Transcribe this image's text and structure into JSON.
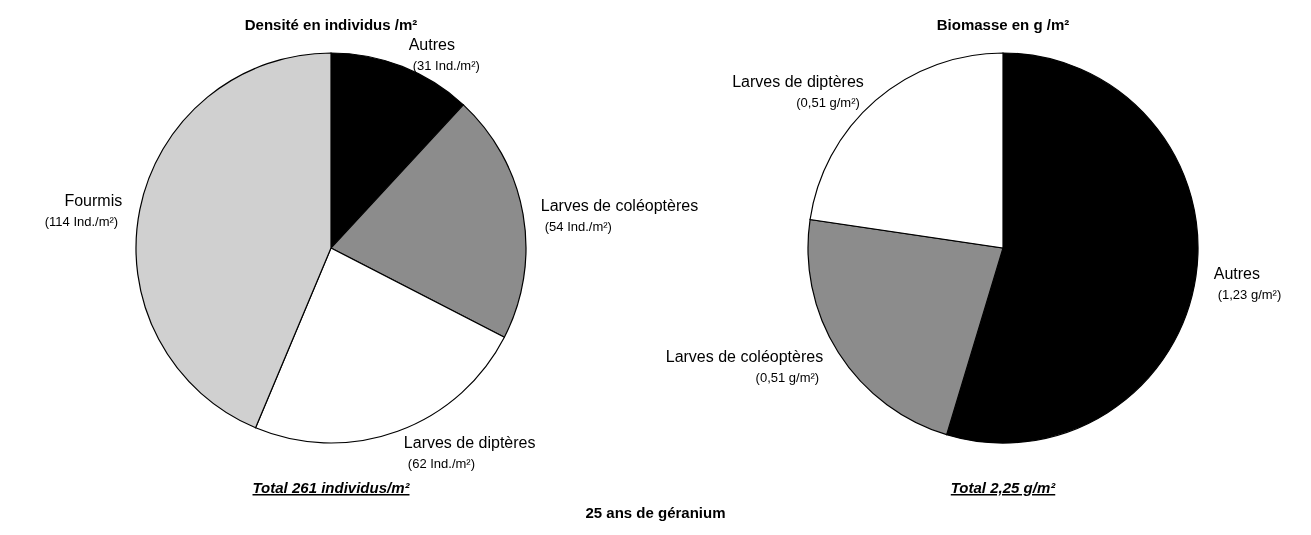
{
  "chart_data": [
    {
      "type": "pie",
      "title": "Densité en individus /m²",
      "categories": [
        "Autres",
        "Larves de coléoptères",
        "Larves de diptères",
        "Fourmis"
      ],
      "values": [
        31,
        54,
        62,
        114
      ],
      "colors": [
        "#000000",
        "#8c8c8c",
        "#ffffff",
        "#d0d0d0"
      ],
      "value_labels": [
        "(31 Ind./m²)",
        "(54 Ind./m²)",
        "(62 Ind./m²)",
        "(114 Ind./m²)"
      ],
      "annotations": [
        "Total 261 individus/m²",
        "25 ans de géranium"
      ]
    },
    {
      "type": "pie",
      "title": "Biomasse en g /m²",
      "categories": [
        "Autres",
        "Larves de coléoptères",
        "Larves de diptères"
      ],
      "values": [
        1.23,
        0.51,
        0.51
      ],
      "colors": [
        "#000000",
        "#8c8c8c",
        "#ffffff"
      ],
      "value_labels": [
        "(1,23 g/m²)",
        "(0,51 g/m²)",
        "(0,51 g/m²)"
      ],
      "annotations": [
        "Total 2,25 g/m²"
      ]
    }
  ]
}
